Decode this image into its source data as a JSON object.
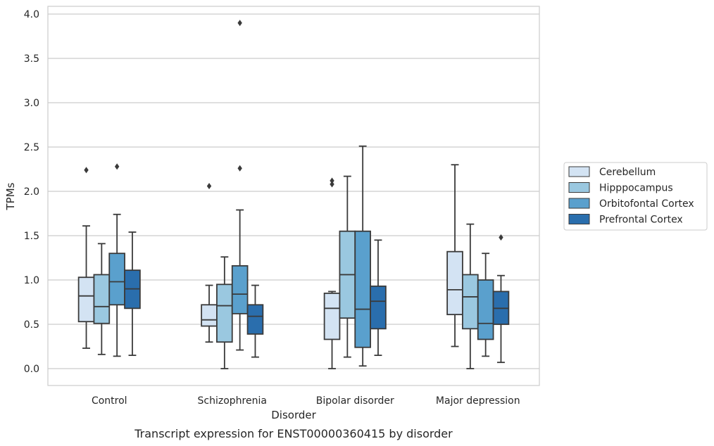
{
  "caption": "Transcript expression for ENST00000360415 by disorder",
  "chart_data": {
    "type": "box",
    "xlabel": "Disorder",
    "ylabel": "TPMs",
    "ylim": [
      -0.18,
      4.1
    ],
    "yticks": [
      "0.0",
      "0.5",
      "1.0",
      "1.5",
      "2.0",
      "2.5",
      "3.0",
      "3.5",
      "4.0"
    ],
    "grid": true,
    "legend_position": "right",
    "categories": [
      "Control",
      "Schizophrenia",
      "Bipolar disorder",
      "Major depression"
    ],
    "series": [
      {
        "name": "Cerebellum",
        "color": "#d3e3f3",
        "boxes": [
          {
            "whislo": 0.23,
            "q1": 0.53,
            "med": 0.82,
            "q3": 1.03,
            "whishi": 1.61,
            "fliers": [
              2.24
            ]
          },
          {
            "whislo": 0.3,
            "q1": 0.48,
            "med": 0.55,
            "q3": 0.72,
            "whishi": 0.94,
            "fliers": [
              2.06
            ]
          },
          {
            "whislo": 0.0,
            "q1": 0.33,
            "med": 0.68,
            "q3": 0.85,
            "whishi": 0.87,
            "fliers": [
              2.08,
              2.12
            ]
          },
          {
            "whislo": 0.25,
            "q1": 0.61,
            "med": 0.89,
            "q3": 1.32,
            "whishi": 2.3,
            "fliers": []
          }
        ]
      },
      {
        "name": "Hipppocampus",
        "color": "#9ac8e0",
        "boxes": [
          {
            "whislo": 0.16,
            "q1": 0.51,
            "med": 0.7,
            "q3": 1.06,
            "whishi": 1.41,
            "fliers": []
          },
          {
            "whislo": 0.0,
            "q1": 0.3,
            "med": 0.71,
            "q3": 0.95,
            "whishi": 1.26,
            "fliers": []
          },
          {
            "whislo": 0.13,
            "q1": 0.57,
            "med": 1.06,
            "q3": 1.55,
            "whishi": 2.17,
            "fliers": []
          },
          {
            "whislo": 0.0,
            "q1": 0.45,
            "med": 0.81,
            "q3": 1.06,
            "whishi": 1.63,
            "fliers": []
          }
        ]
      },
      {
        "name": "Orbitofontal Cortex",
        "color": "#5aa0cd",
        "boxes": [
          {
            "whislo": 0.14,
            "q1": 0.72,
            "med": 0.98,
            "q3": 1.3,
            "whishi": 1.74,
            "fliers": [
              2.28
            ]
          },
          {
            "whislo": 0.21,
            "q1": 0.62,
            "med": 0.84,
            "q3": 1.16,
            "whishi": 1.79,
            "fliers": [
              2.26,
              3.9
            ]
          },
          {
            "whislo": 0.03,
            "q1": 0.24,
            "med": 0.67,
            "q3": 1.55,
            "whishi": 2.51,
            "fliers": []
          },
          {
            "whislo": 0.14,
            "q1": 0.33,
            "med": 0.51,
            "q3": 1.0,
            "whishi": 1.3,
            "fliers": []
          }
        ]
      },
      {
        "name": "Prefrontal Cortex",
        "color": "#2a6ead",
        "boxes": [
          {
            "whislo": 0.15,
            "q1": 0.68,
            "med": 0.9,
            "q3": 1.11,
            "whishi": 1.54,
            "fliers": []
          },
          {
            "whislo": 0.13,
            "q1": 0.39,
            "med": 0.59,
            "q3": 0.72,
            "whishi": 0.94,
            "fliers": []
          },
          {
            "whislo": 0.15,
            "q1": 0.45,
            "med": 0.76,
            "q3": 0.93,
            "whishi": 1.45,
            "fliers": []
          },
          {
            "whislo": 0.07,
            "q1": 0.5,
            "med": 0.68,
            "q3": 0.87,
            "whishi": 1.05,
            "fliers": [
              1.48
            ]
          }
        ]
      }
    ]
  }
}
